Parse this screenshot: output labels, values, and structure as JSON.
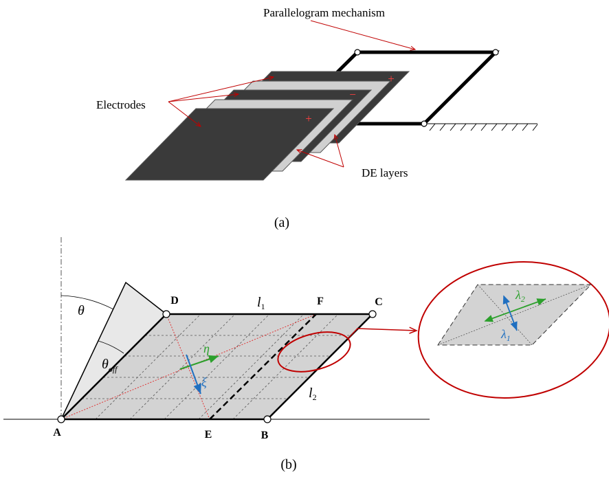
{
  "panel_a": {
    "caption": "(a)",
    "labels": {
      "parallelogram": "Parallelogram mechanism",
      "electrodes": "Electrodes",
      "de_layers": "DE layers"
    },
    "signs": [
      "+",
      "−",
      "+"
    ]
  },
  "panel_b": {
    "caption": "(b)",
    "points": {
      "A": "A",
      "B": "B",
      "C": "C",
      "D": "D",
      "E": "E",
      "F": "F"
    },
    "theta": "θ",
    "theta_off": {
      "base": "θ",
      "sub": "off"
    },
    "eta": "η",
    "xi": "ξ",
    "l1": {
      "base": "l",
      "sub": "1"
    },
    "l2": {
      "base": "l",
      "sub": "2"
    },
    "lambda1": {
      "base": "λ",
      "sub": "1"
    },
    "lambda2": {
      "base": "λ",
      "sub": "2"
    }
  }
}
